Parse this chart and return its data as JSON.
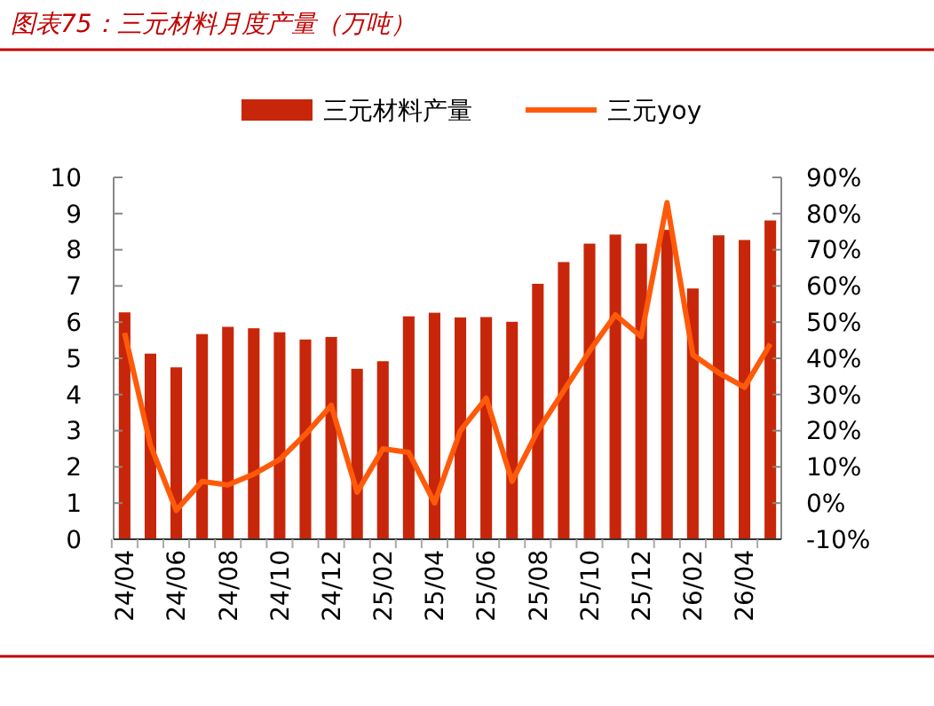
{
  "chart_data": {
    "type": "bar",
    "title": "图表75：三元材料月度产量（万吨）",
    "categories": [
      "24/04",
      null,
      "24/06",
      null,
      "24/08",
      null,
      "24/10",
      null,
      "24/12",
      null,
      "25/02",
      null,
      "25/04",
      null,
      "25/06",
      null,
      "25/08",
      null,
      "25/10",
      null,
      "25/12",
      null,
      "26/02",
      null,
      "26/04",
      null
    ],
    "series": [
      {
        "name": "三元材料产量",
        "color": "#c8260a",
        "values": [
          6.27,
          5.13,
          4.75,
          5.67,
          5.87,
          5.83,
          5.72,
          5.52,
          5.59,
          4.71,
          4.92,
          6.16,
          6.26,
          6.13,
          6.14,
          6.01,
          7.06,
          7.66,
          8.17,
          8.42,
          8.17,
          8.55,
          6.93,
          8.4,
          8.27,
          8.81
        ]
      },
      {
        "name": "三元yoy",
        "type": "line",
        "axis": "y2",
        "color": "#ff5a0a",
        "values": [
          47,
          16,
          -2,
          6,
          5,
          8,
          12,
          19,
          27,
          3,
          15,
          14,
          0,
          20,
          29,
          6,
          20,
          31,
          42,
          52,
          46,
          83,
          41,
          36,
          32,
          44
        ]
      }
    ],
    "ylim": [
      0,
      10
    ],
    "yticks": [
      0,
      1,
      2,
      3,
      4,
      5,
      6,
      7,
      8,
      9,
      10
    ],
    "y2lim": [
      -10,
      90
    ],
    "y2ticks": [
      {
        "value": -10,
        "label": "-10%"
      },
      {
        "value": 0,
        "label": "0%"
      },
      {
        "value": 10,
        "label": "10%"
      },
      {
        "value": 20,
        "label": "20%"
      },
      {
        "value": 30,
        "label": "30%"
      },
      {
        "value": 40,
        "label": "40%"
      },
      {
        "value": 50,
        "label": "50%"
      },
      {
        "value": 60,
        "label": "60%"
      },
      {
        "value": 70,
        "label": "70%"
      },
      {
        "value": 80,
        "label": "80%"
      },
      {
        "value": 90,
        "label": "90%"
      }
    ],
    "legend": "top",
    "grid": false,
    "marker": "none",
    "line_style": "solid"
  }
}
